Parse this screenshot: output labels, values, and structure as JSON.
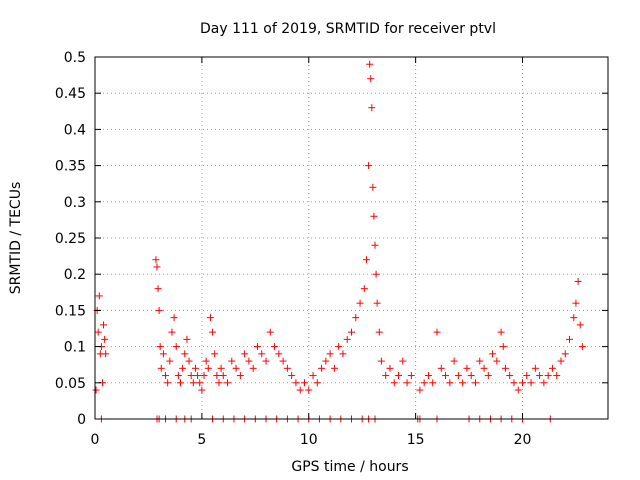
{
  "chart_data": {
    "type": "scatter",
    "title": "Day 111 of 2019, SRMTID for receiver ptvl",
    "xlabel": "GPS time / hours",
    "ylabel": "SRMTID / TECUs",
    "xlim": [
      0,
      24
    ],
    "ylim": [
      0,
      0.5
    ],
    "x_ticks": [
      0,
      5,
      10,
      15,
      20
    ],
    "x_tick_labels": [
      "0",
      "5",
      "10",
      "15",
      "20"
    ],
    "y_ticks": [
      0,
      0.05,
      0.1,
      0.15,
      0.2,
      0.25,
      0.3,
      0.35,
      0.4,
      0.45,
      0.5
    ],
    "y_tick_labels": [
      "0",
      "0.05",
      "0.1",
      "0.15",
      "0.2",
      "0.25",
      "0.3",
      "0.35",
      "0.4",
      "0.45",
      "0.5"
    ],
    "grid": true,
    "marker": "+",
    "color": "#ff0000",
    "series": [
      {
        "name": "SRMTID",
        "x": [
          0.05,
          0.1,
          0.15,
          0.2,
          0.25,
          0.3,
          0.35,
          0.4,
          0.45,
          0.5,
          2.85,
          2.9,
          2.95,
          3.0,
          3.05,
          3.1,
          3.2,
          3.3,
          3.4,
          3.5,
          3.6,
          3.7,
          3.8,
          3.9,
          4.0,
          4.1,
          4.2,
          4.3,
          4.4,
          4.5,
          4.6,
          4.7,
          4.8,
          4.9,
          5.0,
          5.1,
          5.2,
          5.3,
          5.4,
          5.5,
          5.6,
          5.7,
          5.8,
          5.9,
          6.0,
          6.2,
          6.4,
          6.6,
          6.8,
          7.0,
          7.2,
          7.4,
          7.6,
          7.8,
          8.0,
          8.2,
          8.4,
          8.6,
          8.8,
          9.0,
          9.2,
          9.4,
          9.6,
          9.8,
          10.0,
          10.2,
          10.4,
          10.6,
          10.8,
          11.0,
          11.2,
          11.4,
          11.6,
          11.8,
          12.0,
          12.2,
          12.4,
          12.6,
          12.7,
          12.8,
          12.85,
          12.9,
          12.95,
          13.0,
          13.05,
          13.1,
          13.15,
          13.2,
          13.3,
          13.4,
          13.6,
          13.8,
          14.0,
          14.2,
          14.4,
          14.6,
          14.8,
          15.2,
          15.4,
          15.6,
          15.8,
          16.0,
          16.2,
          16.4,
          16.6,
          16.8,
          17.0,
          17.2,
          17.4,
          17.6,
          17.8,
          18.0,
          18.2,
          18.4,
          18.6,
          18.8,
          19.0,
          19.1,
          19.2,
          19.4,
          19.6,
          19.8,
          20.0,
          20.2,
          20.4,
          20.6,
          20.8,
          21.0,
          21.2,
          21.4,
          21.6,
          21.8,
          22.0,
          22.2,
          22.4,
          22.5,
          22.6,
          22.7,
          22.8
        ],
        "y": [
          0.04,
          0.15,
          0.12,
          0.17,
          0.09,
          0.1,
          0.05,
          0.13,
          0.11,
          0.09,
          0.22,
          0.21,
          0.18,
          0.15,
          0.1,
          0.07,
          0.09,
          0.06,
          0.05,
          0.08,
          0.12,
          0.14,
          0.1,
          0.06,
          0.05,
          0.07,
          0.09,
          0.11,
          0.08,
          0.06,
          0.05,
          0.07,
          0.06,
          0.05,
          0.04,
          0.06,
          0.08,
          0.07,
          0.14,
          0.12,
          0.09,
          0.06,
          0.05,
          0.07,
          0.06,
          0.05,
          0.08,
          0.07,
          0.06,
          0.09,
          0.08,
          0.07,
          0.1,
          0.09,
          0.08,
          0.12,
          0.1,
          0.09,
          0.08,
          0.07,
          0.06,
          0.05,
          0.04,
          0.05,
          0.04,
          0.06,
          0.05,
          0.07,
          0.08,
          0.09,
          0.07,
          0.1,
          0.09,
          0.11,
          0.12,
          0.14,
          0.16,
          0.18,
          0.22,
          0.35,
          0.49,
          0.47,
          0.43,
          0.32,
          0.28,
          0.24,
          0.2,
          0.16,
          0.12,
          0.08,
          0.06,
          0.07,
          0.05,
          0.06,
          0.08,
          0.05,
          0.06,
          0.04,
          0.05,
          0.06,
          0.05,
          0.12,
          0.07,
          0.06,
          0.05,
          0.08,
          0.06,
          0.05,
          0.07,
          0.06,
          0.05,
          0.08,
          0.07,
          0.06,
          0.09,
          0.08,
          0.12,
          0.1,
          0.07,
          0.06,
          0.05,
          0.04,
          0.05,
          0.06,
          0.05,
          0.07,
          0.06,
          0.05,
          0.06,
          0.07,
          0.06,
          0.08,
          0.09,
          0.11,
          0.14,
          0.16,
          0.19,
          0.13,
          0.1
        ],
        "zero_ticks_x": [
          0.3,
          2.9,
          3.0,
          3.3,
          3.8,
          4.2,
          4.5,
          5.5,
          6.0,
          6.5,
          7.0,
          7.5,
          8.0,
          8.5,
          9.0,
          9.5,
          10.0,
          10.5,
          11.0,
          11.5,
          12.0,
          12.5,
          12.8,
          13.1,
          15.1,
          15.2,
          16.0,
          17.5,
          18.0,
          18.5,
          19.0,
          19.5,
          20.0,
          21.3
        ]
      }
    ]
  }
}
